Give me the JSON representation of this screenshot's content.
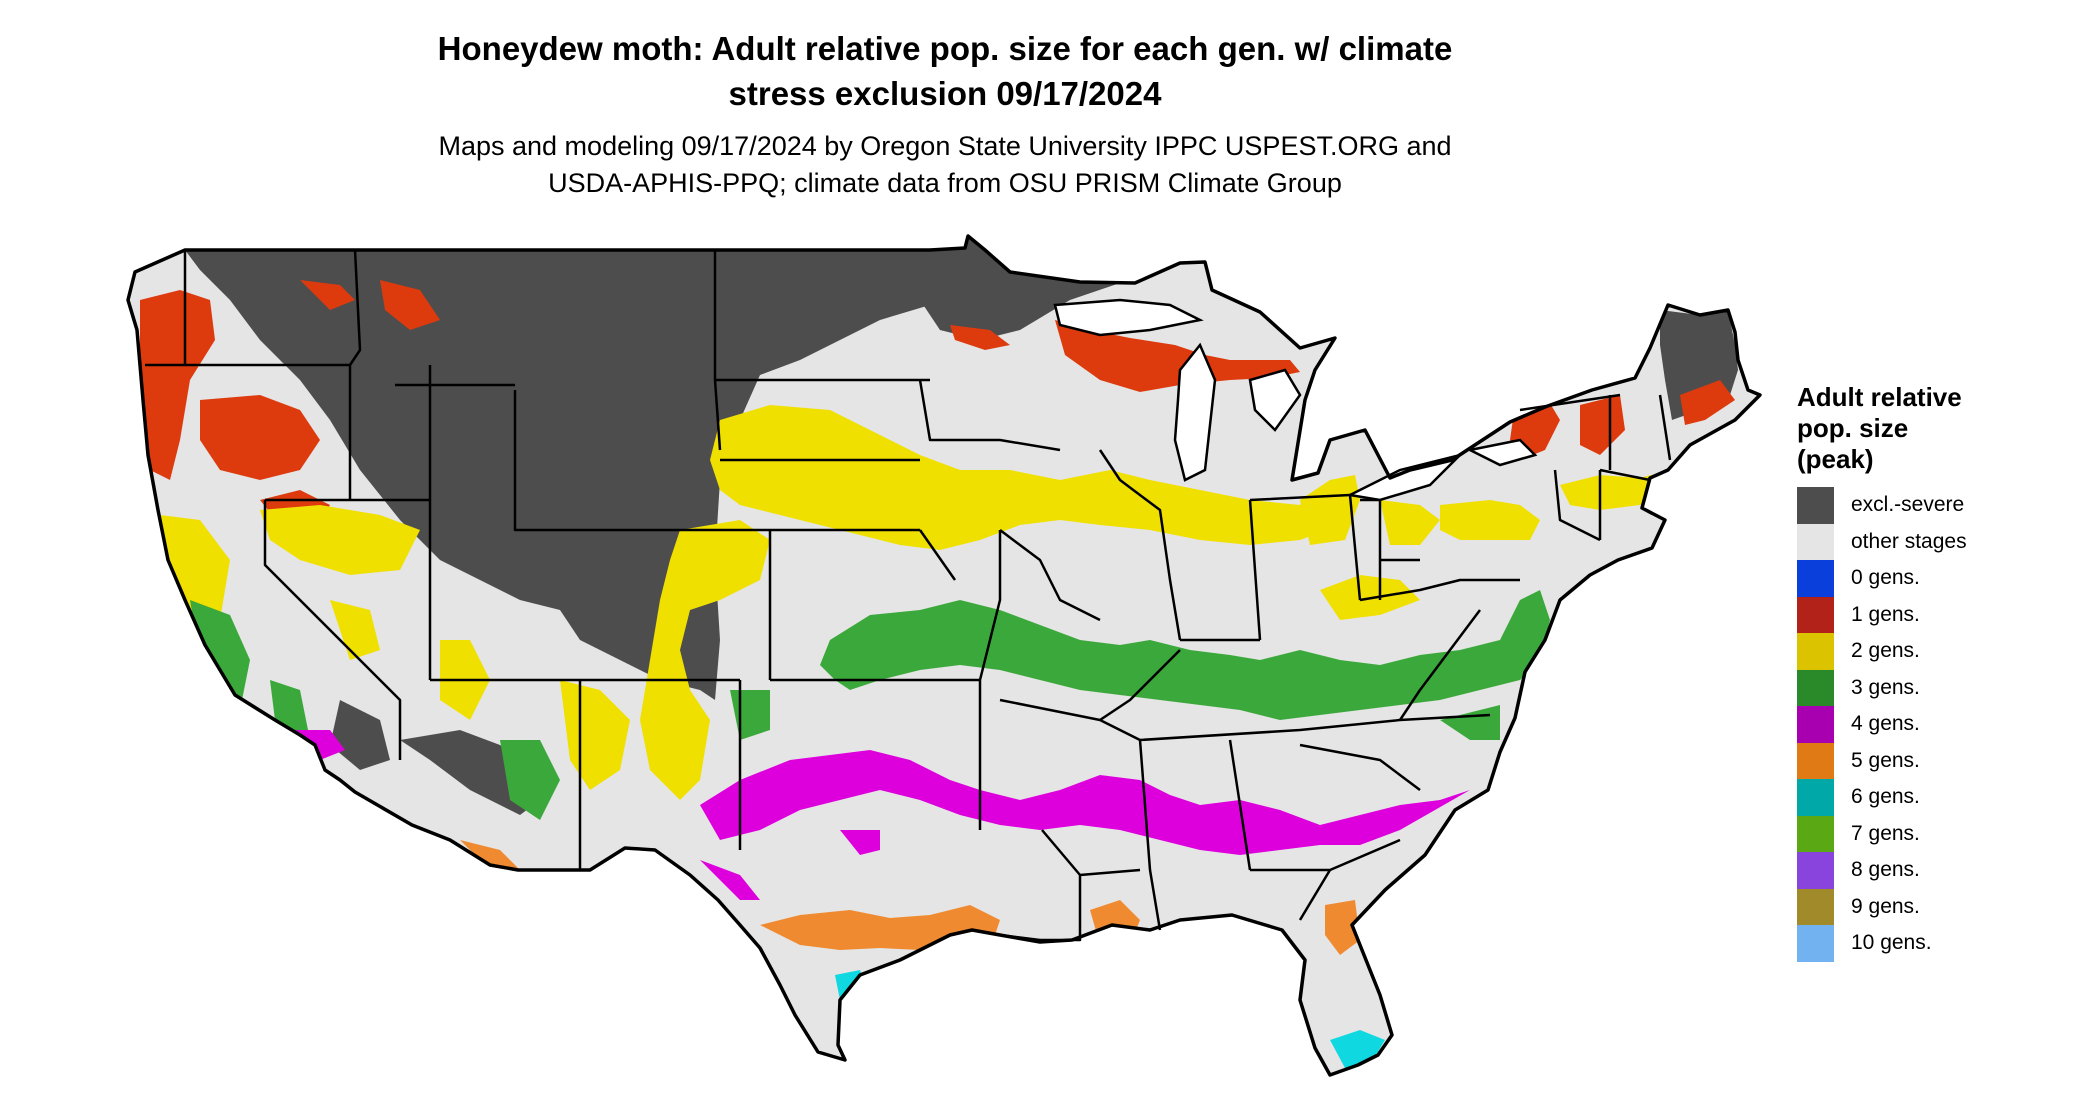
{
  "title_line1": "Honeydew moth: Adult relative pop. size for each gen. w/ climate",
  "title_line2": "stress exclusion 09/17/2024",
  "subtitle_line1": "Maps and modeling 09/17/2024 by Oregon State University IPPC USPEST.ORG and",
  "subtitle_line2": "USDA-APHIS-PPQ; climate data from OSU PRISM Climate Group",
  "legend": {
    "title_lines": [
      "Adult relative",
      "pop. size",
      "(peak)"
    ],
    "items": [
      {
        "label": "excl.-severe",
        "color": "#4d4d4d"
      },
      {
        "label": "other stages",
        "color": "#e5e5e5"
      },
      {
        "label": "0 gens.",
        "color": "#0a3fdc"
      },
      {
        "label": "1 gens.",
        "color": "#b22218"
      },
      {
        "label": "2 gens.",
        "color": "#dbc300"
      },
      {
        "label": "3 gens.",
        "color": "#2a8a2a"
      },
      {
        "label": "4 gens.",
        "color": "#a800b0"
      },
      {
        "label": "5 gens.",
        "color": "#df7a14"
      },
      {
        "label": "6 gens.",
        "color": "#00a8a8"
      },
      {
        "label": "7 gens.",
        "color": "#5aa814"
      },
      {
        "label": "8 gens.",
        "color": "#8844dd"
      },
      {
        "label": "9 gens.",
        "color": "#a08a2a"
      },
      {
        "label": "10 gens.",
        "color": "#72b2f0"
      }
    ]
  },
  "map_colors": {
    "excluded": "#4d4d4d",
    "other": "#e5e5e5",
    "one_gen": "#dd3a0e",
    "two_gen": "#f0e000",
    "three_gen": "#3aa83a",
    "four_gen": "#dd00dd",
    "five_gen": "#ef8a30",
    "six_gen": "#10d8e0",
    "border": "#000000"
  }
}
